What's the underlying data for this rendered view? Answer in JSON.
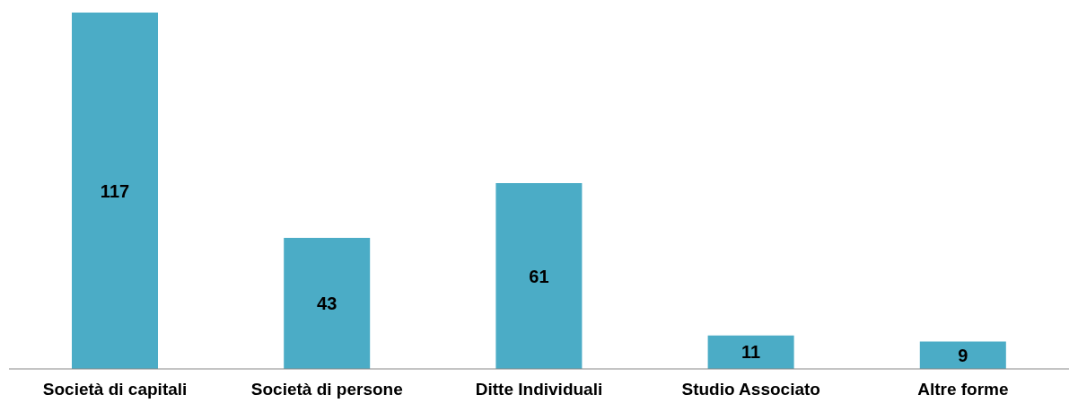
{
  "chart_data": {
    "type": "bar",
    "categories": [
      "Società di capitali",
      "Società di persone",
      "Ditte Individuali",
      "Studio Associato",
      "Altre forme"
    ],
    "values": [
      117,
      43,
      61,
      11,
      9
    ],
    "color": "#4bacc6",
    "data_labels": true
  }
}
